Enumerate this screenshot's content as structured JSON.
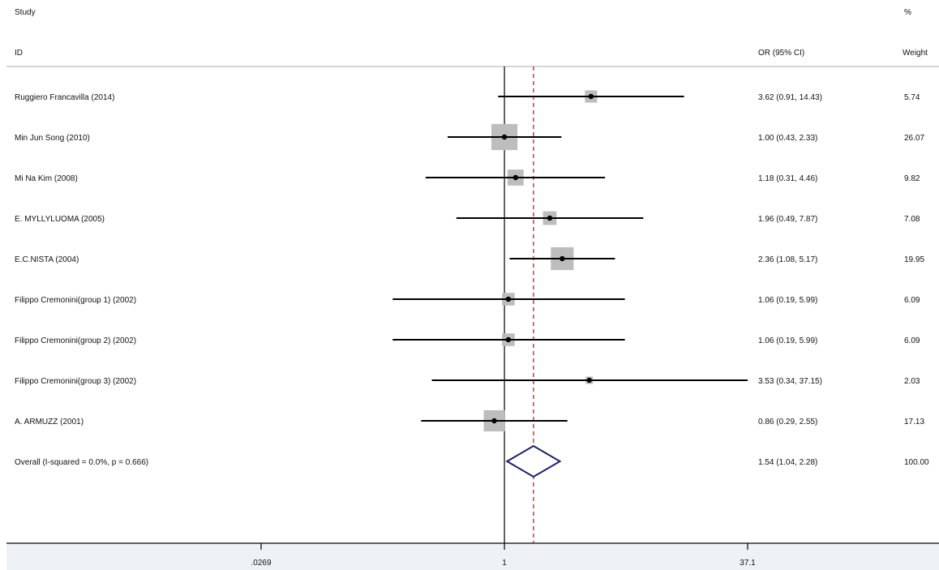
{
  "chart_data": {
    "type": "forest",
    "header": {
      "study": "Study",
      "id": "ID",
      "or_ci": "OR (95% CI)",
      "pct": "%",
      "weight": "Weight"
    },
    "x_scale": "log",
    "xlim": [
      0.0269,
      37.1
    ],
    "x_ticks": [
      ".0269",
      "1",
      "37.1"
    ],
    "null_line": 1,
    "pooled_line": 1.54,
    "studies": [
      {
        "label": "Ruggiero Francavilla (2014)",
        "or": 3.62,
        "lower": 0.91,
        "upper": 14.43,
        "ci_text": "3.62 (0.91, 14.43)",
        "weight": "5.74"
      },
      {
        "label": "Min Jun Song (2010)",
        "or": 1.0,
        "lower": 0.43,
        "upper": 2.33,
        "ci_text": "1.00 (0.43, 2.33)",
        "weight": "26.07"
      },
      {
        "label": "Mi Na Kim (2008)",
        "or": 1.18,
        "lower": 0.31,
        "upper": 4.46,
        "ci_text": "1.18 (0.31, 4.46)",
        "weight": "9.82"
      },
      {
        "label": "E. MYLLYLUOMA (2005)",
        "or": 1.96,
        "lower": 0.49,
        "upper": 7.87,
        "ci_text": "1.96 (0.49, 7.87)",
        "weight": "7.08"
      },
      {
        "label": "E.C.NISTA (2004)",
        "or": 2.36,
        "lower": 1.08,
        "upper": 5.17,
        "ci_text": "2.36 (1.08, 5.17)",
        "weight": "19.95"
      },
      {
        "label": "Filippo Cremonini(group 1) (2002)",
        "or": 1.06,
        "lower": 0.19,
        "upper": 5.99,
        "ci_text": "1.06 (0.19, 5.99)",
        "weight": "6.09"
      },
      {
        "label": "Filippo Cremonini(group 2) (2002)",
        "or": 1.06,
        "lower": 0.19,
        "upper": 5.99,
        "ci_text": "1.06 (0.19, 5.99)",
        "weight": "6.09"
      },
      {
        "label": "Filippo Cremonini(group 3) (2002)",
        "or": 3.53,
        "lower": 0.34,
        "upper": 37.15,
        "ci_text": "3.53 (0.34, 37.15)",
        "weight": "2.03"
      },
      {
        "label": "A. ARMUZZ (2001)",
        "or": 0.86,
        "lower": 0.29,
        "upper": 2.55,
        "ci_text": "0.86 (0.29, 2.55)",
        "weight": "17.13"
      }
    ],
    "overall": {
      "label": "Overall  (I-squared = 0.0%, p = 0.666)",
      "or": 1.54,
      "lower": 1.04,
      "upper": 2.28,
      "ci_text": "1.54 (1.04, 2.28)",
      "weight": "100.00"
    },
    "colors": {
      "box": "#bdbdbd",
      "ci_line": "#000000",
      "diamond": "#1a1f6e",
      "pooled_line": "#a01818",
      "band": "#eef2f4"
    }
  }
}
